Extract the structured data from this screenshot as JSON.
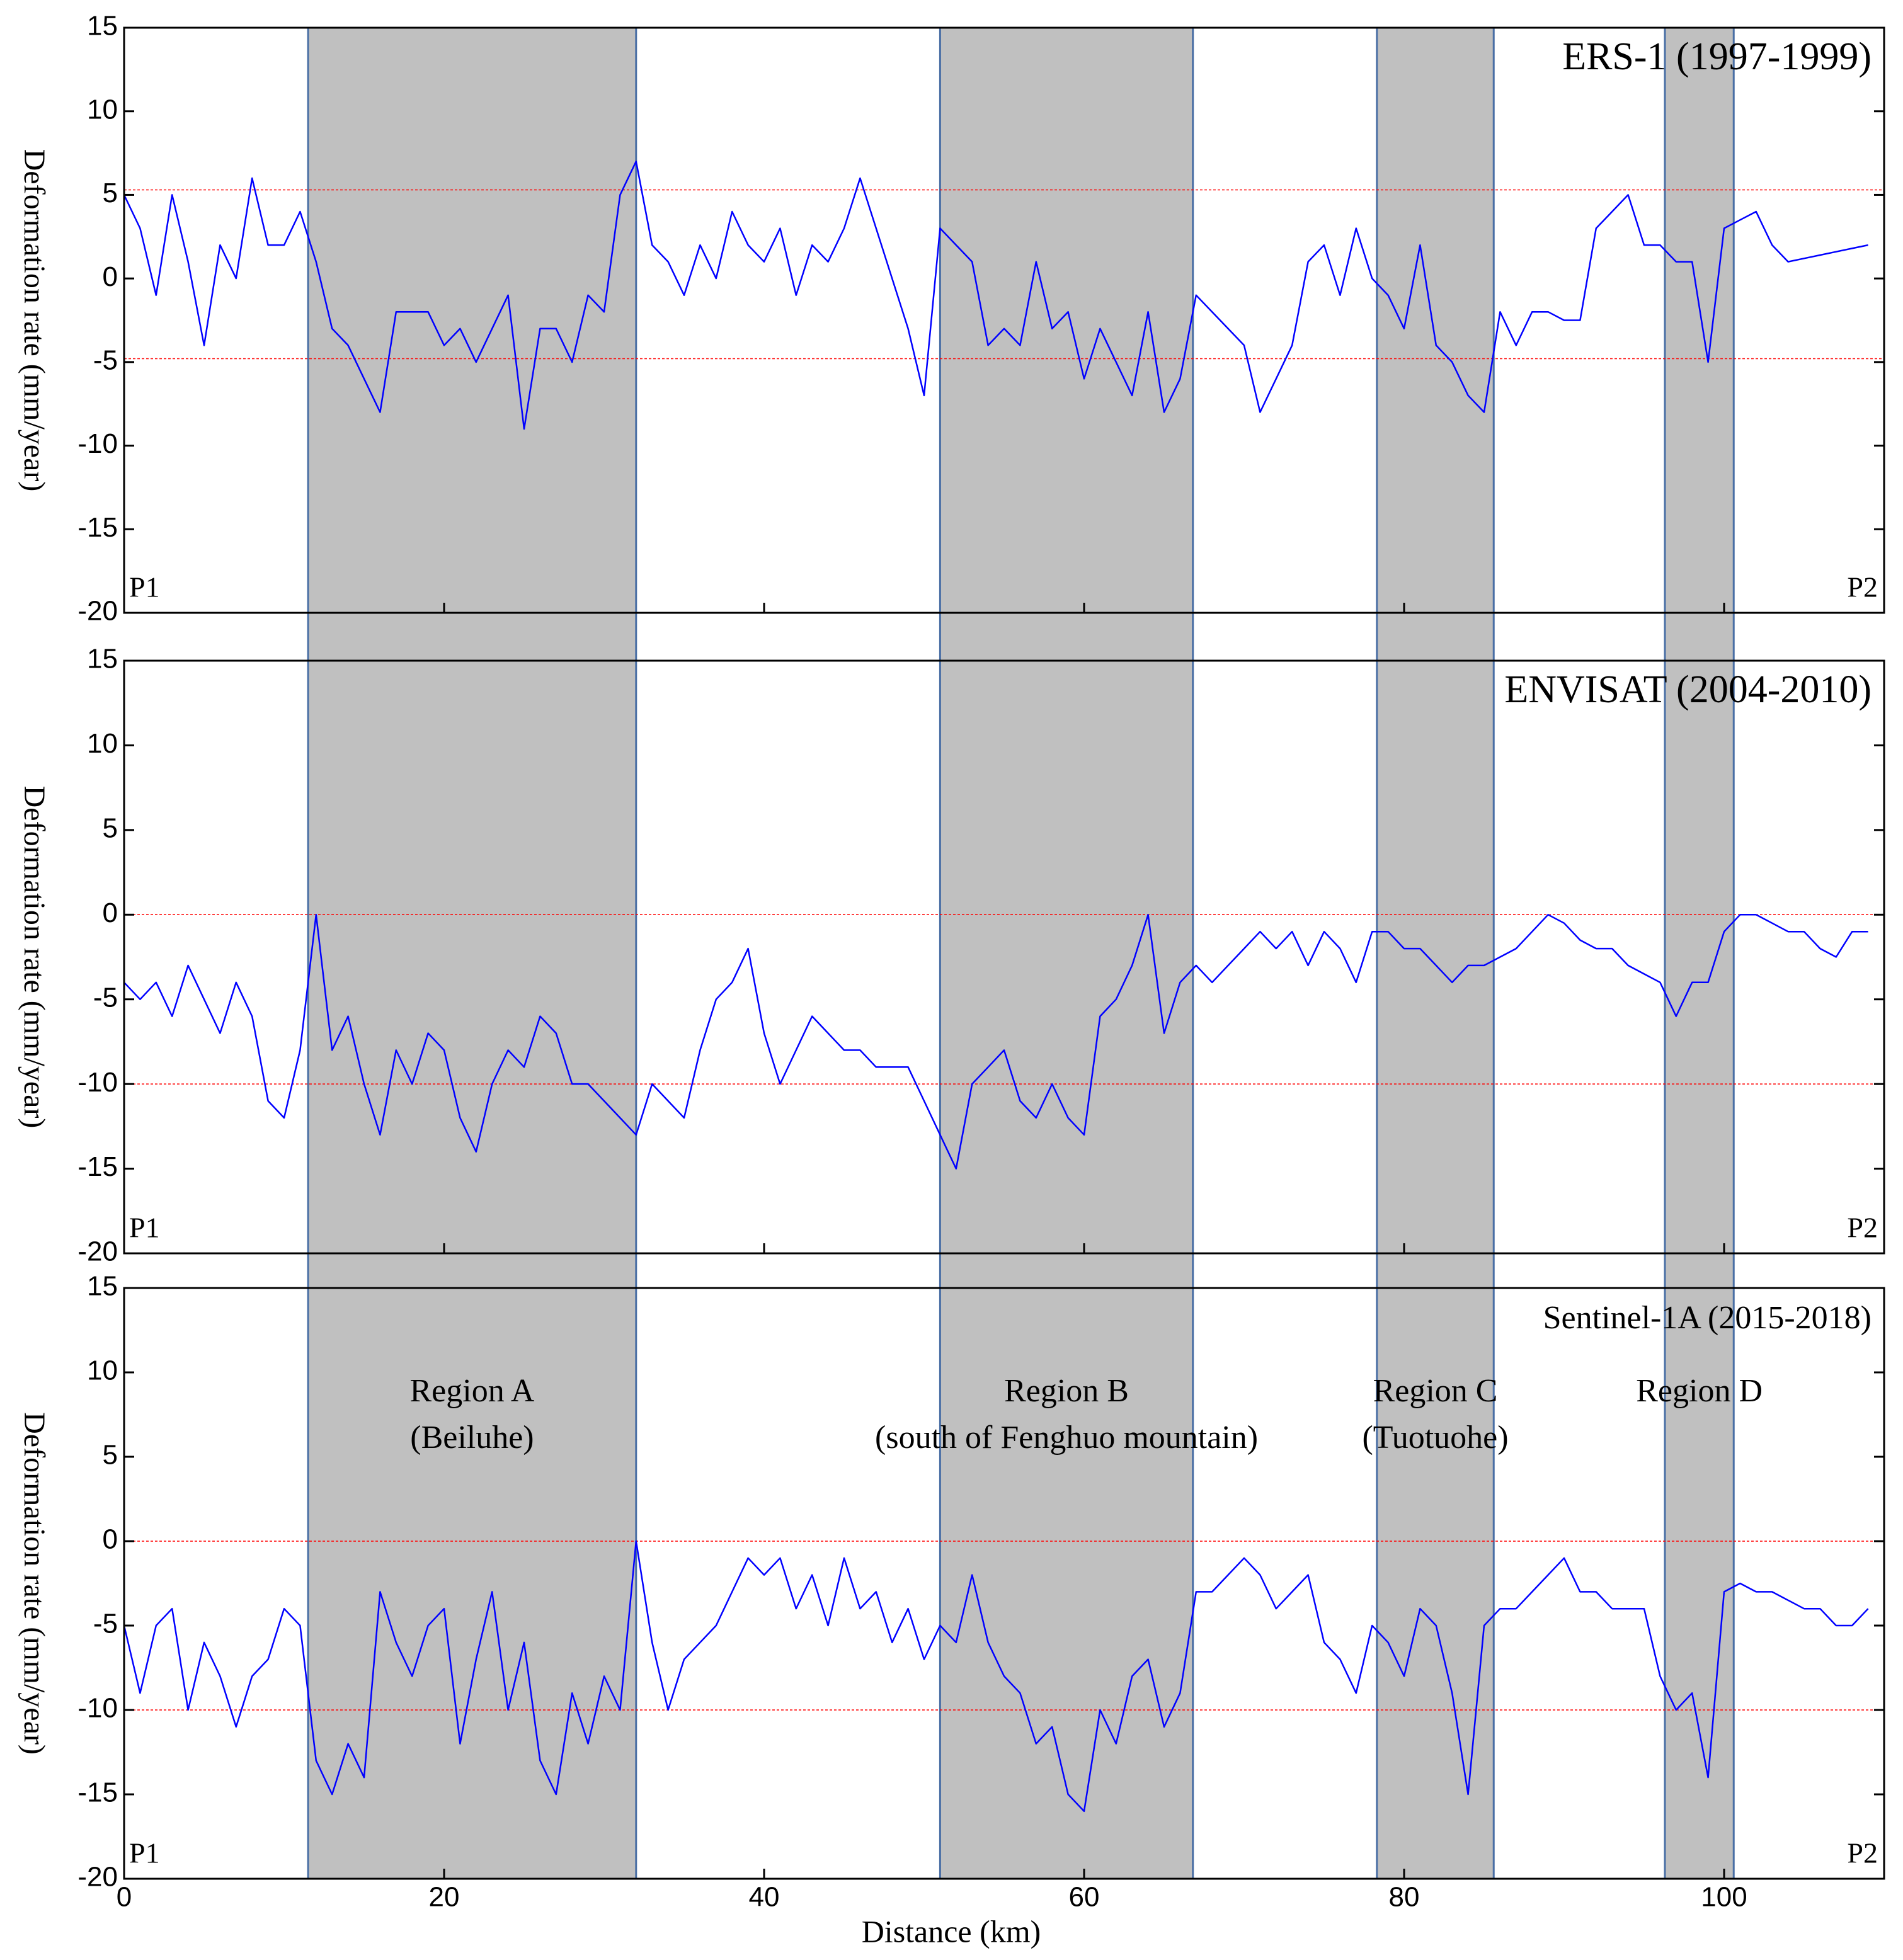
{
  "chart_data": {
    "type": "line",
    "xlabel": "Distance (km)",
    "xlim": [
      0,
      110
    ],
    "xticks": [
      0,
      20,
      40,
      60,
      80,
      100
    ],
    "x": [
      0,
      1,
      2,
      3,
      4,
      5,
      6,
      7,
      8,
      9,
      10,
      11,
      12,
      13,
      14,
      15,
      16,
      17,
      18,
      19,
      20,
      21,
      22,
      23,
      24,
      25,
      26,
      27,
      28,
      29,
      30,
      31,
      32,
      33,
      34,
      35,
      36,
      37,
      38,
      39,
      40,
      41,
      42,
      43,
      44,
      45,
      46,
      47,
      48,
      49,
      50,
      51,
      52,
      53,
      54,
      55,
      56,
      57,
      58,
      59,
      60,
      61,
      62,
      63,
      64,
      65,
      66,
      67,
      68,
      69,
      70,
      71,
      72,
      73,
      74,
      75,
      76,
      77,
      78,
      79,
      80,
      81,
      82,
      83,
      84,
      85,
      86,
      87,
      88,
      89,
      90,
      91,
      92,
      93,
      94,
      95,
      96,
      97,
      98,
      99,
      100,
      101,
      102,
      103,
      104,
      105,
      106,
      107,
      108,
      109
    ],
    "regions": [
      {
        "x": [
          11.5,
          32
        ],
        "label": [
          "Region A",
          "(Beiluhe)"
        ]
      },
      {
        "x": [
          51,
          66.8
        ],
        "label": [
          "Region B",
          "(south of Fenghuo mountain)"
        ]
      },
      {
        "x": [
          78.3,
          85.6
        ],
        "label": [
          "Region C",
          "(Tuotuohe)"
        ]
      },
      {
        "x": [
          96.3,
          100.6
        ],
        "label": [
          "Region D"
        ]
      }
    ],
    "panels": [
      {
        "title": "ERS-1 (1997-1999)",
        "ylabel": "Deformation rate (mm/year)",
        "ylim": [
          -20,
          15
        ],
        "yticks": [
          -20,
          -15,
          -10,
          -5,
          0,
          5,
          10,
          15
        ],
        "reference_lines": [
          5.3,
          -4.8
        ],
        "reference_color": "#ff0000",
        "annotations": [
          "P1",
          "P2"
        ],
        "series": [
          {
            "color": "#0000ff",
            "values": [
              5,
              3,
              -1,
              5,
              1,
              -4,
              2,
              0,
              6,
              2,
              2,
              4,
              1,
              -3,
              -4,
              -6,
              -8,
              -2,
              -2,
              -2,
              -4,
              -3,
              -5,
              -3,
              -1,
              -9,
              -3,
              -3,
              -5,
              -1,
              -2,
              5,
              7,
              2,
              1,
              -1,
              2,
              0,
              4,
              2,
              1,
              3,
              -1,
              2,
              1,
              3,
              6,
              3,
              0,
              -3,
              -7,
              3,
              2,
              1,
              -4,
              -3,
              -4,
              1,
              -3,
              -2,
              -6,
              -3,
              -5,
              -7,
              -2,
              -8,
              -6,
              -1,
              -2,
              -3,
              -4,
              -8,
              -6,
              -4,
              1,
              2,
              -1,
              3,
              0,
              -1,
              -3,
              2,
              -4,
              -5,
              -7,
              -8,
              -2,
              -4,
              -2,
              -2,
              -2.5,
              -2.5,
              3,
              4,
              5,
              2,
              2,
              1,
              1,
              -5,
              3,
              3.5,
              4,
              2,
              1,
              1.2,
              1.4,
              1.6,
              1.8,
              2
            ]
          }
        ]
      },
      {
        "title": "ENVISAT (2004-2010)",
        "ylabel": "Deformation rate (mm/year)",
        "ylim": [
          -20,
          15
        ],
        "yticks": [
          -20,
          -15,
          -10,
          -5,
          0,
          5,
          10,
          15
        ],
        "reference_lines": [
          0,
          -10
        ],
        "reference_color": "#ff0000",
        "annotations": [
          "P1",
          "P2"
        ],
        "series": [
          {
            "color": "#0000ff",
            "values": [
              -4,
              -5,
              -4,
              -6,
              -3,
              -5,
              -7,
              -4,
              -6,
              -11,
              -12,
              -8,
              0,
              -8,
              -6,
              -10,
              -13,
              -8,
              -10,
              -7,
              -8,
              -12,
              -14,
              -10,
              -8,
              -9,
              -6,
              -7,
              -10,
              -10,
              -11,
              -12,
              -13,
              -10,
              -11,
              -12,
              -8,
              -5,
              -4,
              -2,
              -7,
              -10,
              -8,
              -6,
              -7,
              -8,
              -8,
              -9,
              -9,
              -9,
              -11,
              -13,
              -15,
              -10,
              -9,
              -8,
              -11,
              -12,
              -10,
              -12,
              -13,
              -6,
              -5,
              -3,
              0,
              -7,
              -4,
              -3,
              -4,
              -3,
              -2,
              -1,
              -2,
              -1,
              -3,
              -1,
              -2,
              -4,
              -1,
              -1,
              -2,
              -2,
              -3,
              -4,
              -3,
              -3,
              -2.5,
              -2,
              -1,
              0,
              -0.5,
              -1.5,
              -2,
              -2,
              -3,
              -3.5,
              -4,
              -6,
              -4,
              -4,
              -1,
              0,
              0,
              -0.5,
              -1,
              -1,
              -2,
              -2.5,
              -1,
              -1
            ]
          }
        ]
      },
      {
        "title": "Sentinel-1A (2015-2018)",
        "ylabel": "Deformation rate (mm/year)",
        "ylim": [
          -20,
          15
        ],
        "yticks": [
          -20,
          -15,
          -10,
          -5,
          0,
          5,
          10,
          15
        ],
        "reference_lines": [
          0,
          -10
        ],
        "reference_color": "#ff0000",
        "annotations": [
          "P1",
          "P2"
        ],
        "series": [
          {
            "color": "#0000ff",
            "values": [
              -5,
              -9,
              -5,
              -4,
              -10,
              -6,
              -8,
              -11,
              -8,
              -7,
              -4,
              -5,
              -13,
              -15,
              -12,
              -14,
              -3,
              -6,
              -8,
              -5,
              -4,
              -12,
              -7,
              -3,
              -10,
              -6,
              -13,
              -15,
              -9,
              -12,
              -8,
              -10,
              0,
              -6,
              -10,
              -7,
              -6,
              -5,
              -3,
              -1,
              -2,
              -1,
              -4,
              -2,
              -5,
              -1,
              -4,
              -3,
              -6,
              -4,
              -7,
              -5,
              -6,
              -2,
              -6,
              -8,
              -9,
              -12,
              -11,
              -15,
              -16,
              -10,
              -12,
              -8,
              -7,
              -11,
              -9,
              -3,
              -3,
              -2,
              -1,
              -2,
              -4,
              -3,
              -2,
              -6,
              -7,
              -9,
              -5,
              -6,
              -8,
              -4,
              -5,
              -9,
              -15,
              -5,
              -4,
              -4,
              -3,
              -2,
              -1,
              -3,
              -3,
              -4,
              -4,
              -4,
              -8,
              -10,
              -9,
              -14,
              -3,
              -2.5,
              -3,
              -3,
              -3.5,
              -4,
              -4,
              -5,
              -5,
              -4
            ]
          }
        ]
      }
    ]
  }
}
